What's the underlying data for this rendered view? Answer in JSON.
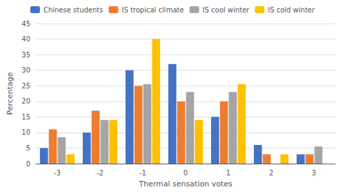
{
  "chart_data": {
    "type": "bar",
    "categories": [
      "-3",
      "-2",
      "-1",
      "0",
      "1",
      "2",
      "3"
    ],
    "series": [
      {
        "name": "Chinese students",
        "color": "#4472C4",
        "values": [
          5,
          10,
          30,
          32,
          15,
          6,
          3
        ]
      },
      {
        "name": "IS tropical climate",
        "color": "#ED7D31",
        "values": [
          11,
          17,
          25,
          20,
          20,
          3,
          3
        ]
      },
      {
        "name": "IS cool winter",
        "color": "#A5A5A5",
        "values": [
          8.5,
          14,
          25.5,
          23,
          23,
          0,
          5.5
        ]
      },
      {
        "name": "IS cold winter",
        "color": "#FFC000",
        "values": [
          3,
          14,
          40,
          14,
          25.5,
          3,
          0
        ]
      }
    ],
    "xlabel": "Thermal sensation votes",
    "ylabel": "Percentage",
    "ylim": [
      0,
      45
    ],
    "yticks": [
      0,
      5,
      10,
      15,
      20,
      25,
      30,
      35,
      40,
      45
    ],
    "grid": true,
    "legend": "top"
  }
}
